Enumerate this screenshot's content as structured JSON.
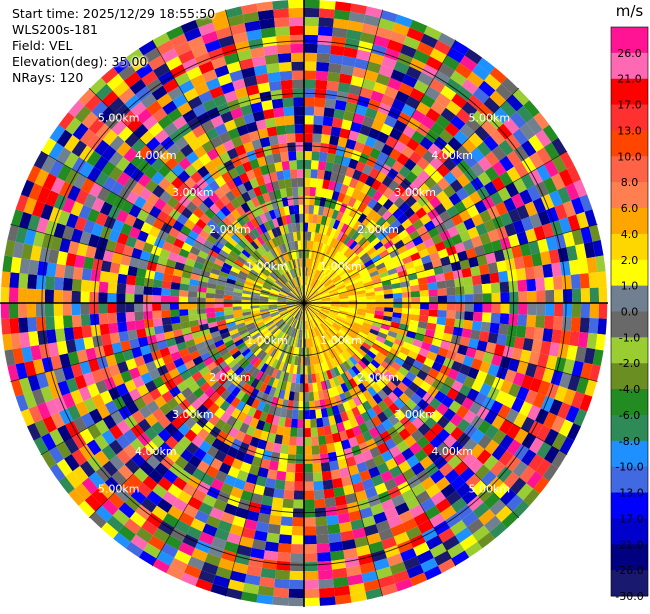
{
  "header": {
    "start_time": "Start time: 2025/12/29 18:55:50",
    "instrument": "WLS200s-181",
    "field": "Field: VEL",
    "elevation": "Elevation(deg): 35.00",
    "nrays": "NRays: 120"
  },
  "chart_data": {
    "type": "heatmap",
    "projection": "polar",
    "field": "VEL",
    "nrays": 120,
    "elevation_deg": 35.0,
    "range_rings_km": [
      1.0,
      2.0,
      3.0,
      4.0,
      5.0
    ],
    "ring_labels": [
      {
        "text": "1.00km",
        "km": 1.0,
        "quadrant": "NW"
      },
      {
        "text": "1.00km",
        "km": 1.0,
        "quadrant": "NE"
      },
      {
        "text": "1.00km",
        "km": 1.0,
        "quadrant": "SW"
      },
      {
        "text": "1.00km",
        "km": 1.0,
        "quadrant": "SE"
      },
      {
        "text": "2.00km",
        "km": 2.0,
        "quadrant": "NW"
      },
      {
        "text": "2.00km",
        "km": 2.0,
        "quadrant": "NE"
      },
      {
        "text": "2.00km",
        "km": 2.0,
        "quadrant": "SW"
      },
      {
        "text": "2.00km",
        "km": 2.0,
        "quadrant": "SE"
      },
      {
        "text": "3.00km",
        "km": 3.0,
        "quadrant": "NW"
      },
      {
        "text": "3.00km",
        "km": 3.0,
        "quadrant": "NE"
      },
      {
        "text": "3.00km",
        "km": 3.0,
        "quadrant": "SW"
      },
      {
        "text": "3.00km",
        "km": 3.0,
        "quadrant": "SE"
      },
      {
        "text": "4.00km",
        "km": 4.0,
        "quadrant": "NW"
      },
      {
        "text": "4.00km",
        "km": 4.0,
        "quadrant": "NE"
      },
      {
        "text": "4.00km",
        "km": 4.0,
        "quadrant": "SW"
      },
      {
        "text": "4.00km",
        "km": 4.0,
        "quadrant": "SE"
      },
      {
        "text": "5.00km",
        "km": 5.0,
        "quadrant": "NW"
      },
      {
        "text": "5.00km",
        "km": 5.0,
        "quadrant": "NE"
      },
      {
        "text": "5.00km",
        "km": 5.0,
        "quadrant": "SW"
      },
      {
        "text": "5.00km",
        "km": 5.0,
        "quadrant": "SE"
      }
    ],
    "colorbar": {
      "unit": "m/s",
      "tick_labels": [
        "26.0",
        "21.0",
        "17.0",
        "13.0",
        "10.0",
        "8.0",
        "6.0",
        "4.0",
        "2.0",
        "1.0",
        "0.0",
        "-1.0",
        "-2.0",
        "-4.0",
        "-6.0",
        "-8.0",
        "-10.0",
        "-13.0",
        "-17.0",
        "-21.0",
        "-26.0",
        "-30.0"
      ],
      "colors": [
        "#ff1493",
        "#ff69b4",
        "#ff0000",
        "#ff3030",
        "#ff4500",
        "#ff6347",
        "#ff7f50",
        "#ffa500",
        "#ffd700",
        "#ffff00",
        "#708090",
        "#696969",
        "#9acd32",
        "#6b8e23",
        "#228b22",
        "#2e8b57",
        "#1e90ff",
        "#4169e1",
        "#0000ff",
        "#0000cd",
        "#000080",
        "#191970"
      ]
    }
  }
}
